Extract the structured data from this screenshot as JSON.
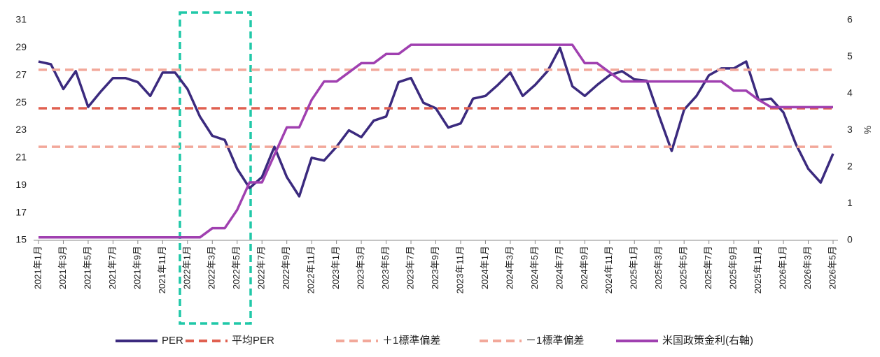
{
  "chart_data": {
    "type": "line",
    "categories": [
      "2021年1月",
      null,
      "2021年3月",
      null,
      "2021年5月",
      null,
      "2021年7月",
      null,
      "2021年9月",
      null,
      "2021年11月",
      null,
      "2022年1月",
      null,
      "2022年3月",
      null,
      "2022年5月",
      null,
      "2022年7月",
      null,
      "2022年9月",
      null,
      "2022年11月",
      null,
      "2023年1月",
      null,
      "2023年3月",
      null,
      "2023年5月",
      null,
      "2023年7月",
      null,
      "2023年9月",
      null,
      "2023年11月",
      null,
      "2024年1月",
      null,
      "2024年3月",
      null,
      "2024年5月",
      null,
      "2024年7月",
      null,
      "2024年9月",
      null,
      "2024年11月",
      null,
      "2025年1月",
      null,
      "2025年3月",
      null,
      "2025年5月",
      null,
      "2025年7月",
      null,
      "2025年9月",
      null,
      "2025年11月",
      null,
      "2026年1月",
      null,
      "2026年3月",
      null,
      "2026年5月"
    ],
    "series": [
      {
        "name": "PER",
        "color": "#3b2a7e",
        "values": [
          28,
          27.8,
          26,
          27.3,
          24.7,
          25.8,
          26.8,
          26.8,
          26.5,
          25.5,
          27.2,
          27.2,
          26,
          24,
          22.6,
          22.3,
          20.2,
          18.8,
          19.6,
          21.8,
          19.6,
          18.2,
          21,
          20.8,
          21.8,
          23,
          22.5,
          23.7,
          24,
          26.5,
          26.8,
          25,
          24.6,
          23.2,
          23.5,
          25.3,
          25.5,
          26.3,
          27.2,
          25.5,
          26.3,
          27.3,
          29,
          26.2,
          25.5,
          26.3,
          27,
          27.3,
          26.7,
          26.6,
          24,
          21.5,
          24.5,
          25.5,
          27,
          27.5,
          27.5,
          28,
          25.2,
          25.3,
          24.3,
          22,
          20.2,
          19.2,
          21.3
        ]
      },
      {
        "name": "平均PER",
        "color": "#e06050",
        "value": 24.6,
        "dashed": true
      },
      {
        "name": "＋1標準偏差",
        "color": "#f2a89a",
        "value": 27.4,
        "dashed": true
      },
      {
        "name": "－1標準偏差",
        "color": "#f2a89a",
        "value": 21.8,
        "dashed": true
      },
      {
        "name": "米国政策金利(右軸)",
        "color": "#a040b0",
        "axis": "y2",
        "values": [
          0.08,
          0.08,
          0.08,
          0.08,
          0.08,
          0.08,
          0.08,
          0.08,
          0.08,
          0.08,
          0.08,
          0.08,
          0.08,
          0.08,
          0.33,
          0.33,
          0.83,
          1.58,
          1.58,
          2.33,
          3.08,
          3.08,
          3.83,
          4.33,
          4.33,
          4.58,
          4.83,
          4.83,
          5.08,
          5.08,
          5.33,
          5.33,
          5.33,
          5.33,
          5.33,
          5.33,
          5.33,
          5.33,
          5.33,
          5.33,
          5.33,
          5.33,
          5.33,
          5.33,
          4.83,
          4.83,
          4.58,
          4.33,
          4.33,
          4.33,
          4.33,
          4.33,
          4.33,
          4.33,
          4.33,
          4.33,
          4.08,
          4.08,
          3.83,
          3.63,
          3.63,
          3.63,
          3.63,
          3.63,
          3.63
        ]
      }
    ],
    "ylim": [
      15,
      31
    ],
    "yticks": [
      15,
      17,
      19,
      21,
      23,
      25,
      27,
      29,
      31
    ],
    "y2lim": [
      0,
      6
    ],
    "y2ticks": [
      0,
      1,
      2,
      3,
      4,
      5,
      6
    ],
    "y2label": "%"
  }
}
